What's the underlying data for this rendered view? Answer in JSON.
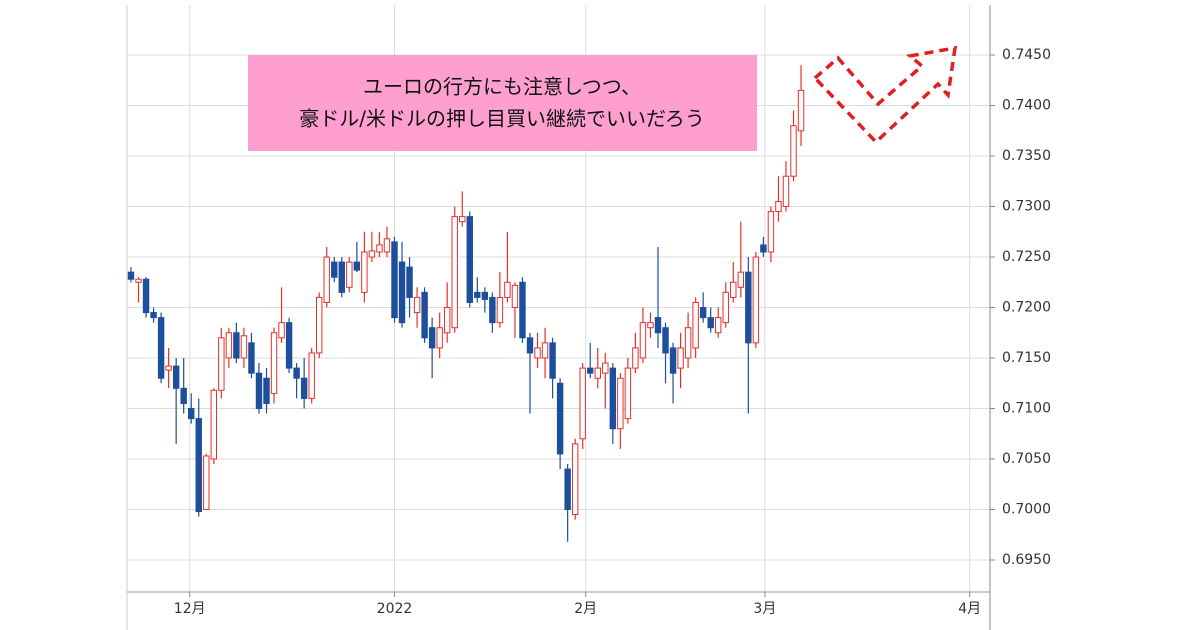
{
  "chart_data": {
    "type": "candlestick",
    "annotation": [
      "ユーロの行方にも注意しつつ、",
      "豪ドル/米ドルの押し目買い継続でいいだろう"
    ],
    "x": [
      0,
      1,
      2,
      3,
      4,
      5,
      6,
      7,
      8,
      9,
      10,
      11,
      12,
      13,
      14,
      15,
      16,
      17,
      18,
      19,
      20,
      21,
      22,
      23,
      24,
      25,
      26,
      27,
      28,
      29,
      30,
      31,
      32,
      33,
      34,
      35,
      36,
      37,
      38,
      39,
      40,
      41,
      42,
      43,
      44,
      45,
      46,
      47,
      48,
      49,
      50,
      51,
      52,
      53,
      54,
      55,
      56,
      57,
      58,
      59,
      60,
      61,
      62,
      63,
      64,
      65,
      66,
      67,
      68,
      69,
      70,
      71,
      72,
      73,
      74,
      75,
      76,
      77,
      78,
      79,
      80,
      81,
      82,
      83,
      84,
      85,
      86,
      87,
      88,
      89
    ],
    "open": [
      0.7235,
      0.7225,
      0.7228,
      0.7195,
      0.719,
      0.7138,
      0.7142,
      0.712,
      0.71,
      0.709,
      0.7,
      0.705,
      0.7118,
      0.715,
      0.7175,
      0.715,
      0.7165,
      0.7135,
      0.713,
      0.7115,
      0.717,
      0.7185,
      0.714,
      0.713,
      0.711,
      0.7155,
      0.7205,
      0.7245,
      0.7245,
      0.722,
      0.7245,
      0.7215,
      0.725,
      0.7255,
      0.7255,
      0.7265,
      0.7245,
      0.724,
      0.7195,
      0.7215,
      0.718,
      0.716,
      0.7175,
      0.718,
      0.7285,
      0.729,
      0.7215,
      0.7215,
      0.721,
      0.7185,
      0.721,
      0.72,
      0.7225,
      0.717,
      0.715,
      0.715,
      0.7165,
      0.7125,
      0.704,
      0.6995,
      0.707,
      0.714,
      0.713,
      0.7135,
      0.714,
      0.708,
      0.709,
      0.714,
      0.715,
      0.718,
      0.719,
      0.718,
      0.716,
      0.714,
      0.715,
      0.716,
      0.72,
      0.719,
      0.7175,
      0.7185,
      0.721,
      0.722,
      0.7235,
      0.7165,
      0.7262,
      0.7255,
      0.7295,
      0.73,
      0.733,
      0.7375
    ],
    "high": [
      0.724,
      0.723,
      0.723,
      0.72,
      0.7195,
      0.716,
      0.715,
      0.715,
      0.7115,
      0.711,
      0.7055,
      0.712,
      0.718,
      0.718,
      0.7185,
      0.718,
      0.7175,
      0.7145,
      0.714,
      0.718,
      0.722,
      0.719,
      0.7145,
      0.715,
      0.716,
      0.7215,
      0.726,
      0.725,
      0.725,
      0.725,
      0.7265,
      0.7275,
      0.7275,
      0.7275,
      0.728,
      0.727,
      0.7265,
      0.725,
      0.722,
      0.722,
      0.719,
      0.7195,
      0.7225,
      0.73,
      0.7315,
      0.7295,
      0.723,
      0.722,
      0.7215,
      0.7235,
      0.7275,
      0.7225,
      0.723,
      0.7175,
      0.7175,
      0.718,
      0.717,
      0.713,
      0.7045,
      0.707,
      0.7145,
      0.7165,
      0.716,
      0.7155,
      0.7145,
      0.7135,
      0.715,
      0.7175,
      0.72,
      0.7195,
      0.726,
      0.7185,
      0.7165,
      0.7175,
      0.7195,
      0.721,
      0.7215,
      0.72,
      0.72,
      0.7225,
      0.7245,
      0.7285,
      0.725,
      0.7255,
      0.727,
      0.73,
      0.733,
      0.7345,
      0.7395,
      0.744
    ],
    "low": [
      0.7225,
      0.7205,
      0.719,
      0.7185,
      0.7125,
      0.712,
      0.7065,
      0.7095,
      0.7085,
      0.6993,
      0.7,
      0.7045,
      0.711,
      0.714,
      0.7145,
      0.714,
      0.713,
      0.7095,
      0.7095,
      0.7105,
      0.7165,
      0.7135,
      0.711,
      0.71,
      0.7105,
      0.715,
      0.72,
      0.7225,
      0.721,
      0.7215,
      0.7235,
      0.7205,
      0.7245,
      0.725,
      0.725,
      0.7185,
      0.718,
      0.719,
      0.718,
      0.7165,
      0.713,
      0.715,
      0.7165,
      0.7175,
      0.728,
      0.72,
      0.7205,
      0.7195,
      0.7175,
      0.718,
      0.7205,
      0.717,
      0.7165,
      0.7095,
      0.714,
      0.713,
      0.711,
      0.704,
      0.6968,
      0.699,
      0.706,
      0.713,
      0.712,
      0.71,
      0.7065,
      0.706,
      0.7085,
      0.7135,
      0.7145,
      0.717,
      0.716,
      0.7125,
      0.7105,
      0.712,
      0.714,
      0.715,
      0.7185,
      0.7175,
      0.717,
      0.718,
      0.7205,
      0.721,
      0.7095,
      0.716,
      0.725,
      0.7245,
      0.7285,
      0.7295,
      0.7325,
      0.736
    ],
    "close": [
      0.7228,
      0.7228,
      0.7195,
      0.719,
      0.713,
      0.7142,
      0.712,
      0.7105,
      0.709,
      0.6998,
      0.7053,
      0.7118,
      0.717,
      0.7175,
      0.715,
      0.7172,
      0.7135,
      0.71,
      0.7105,
      0.7175,
      0.7185,
      0.714,
      0.713,
      0.711,
      0.7155,
      0.721,
      0.725,
      0.723,
      0.7215,
      0.7245,
      0.7237,
      0.7255,
      0.7256,
      0.7262,
      0.7268,
      0.719,
      0.7185,
      0.721,
      0.721,
      0.717,
      0.716,
      0.718,
      0.72,
      0.729,
      0.729,
      0.7205,
      0.721,
      0.7208,
      0.7185,
      0.721,
      0.7225,
      0.7222,
      0.717,
      0.7155,
      0.716,
      0.7165,
      0.713,
      0.7055,
      0.7,
      0.7065,
      0.714,
      0.7135,
      0.714,
      0.7145,
      0.708,
      0.713,
      0.714,
      0.716,
      0.7185,
      0.7185,
      0.7175,
      0.7155,
      0.7135,
      0.716,
      0.718,
      0.7205,
      0.719,
      0.718,
      0.719,
      0.7215,
      0.7225,
      0.7235,
      0.7165,
      0.725,
      0.7255,
      0.7295,
      0.7305,
      0.733,
      0.738,
      0.7415
    ],
    "up_color": "#e8302a",
    "down_color": "#1c4f9c",
    "xlim": [
      -0.53,
      114.1
    ],
    "xticks": [
      {
        "value": 7.8,
        "label": "12月"
      },
      {
        "value": 35.0,
        "label": "2022"
      },
      {
        "value": 60.4,
        "label": "2月"
      },
      {
        "value": 84.2,
        "label": "3月"
      },
      {
        "value": 111.4,
        "label": "4月"
      }
    ],
    "ylim": [
      0.69183,
      0.75045
    ],
    "yticks": [
      {
        "value": 0.695,
        "label": "0.6950"
      },
      {
        "value": 0.7,
        "label": "0.7000"
      },
      {
        "value": 0.705,
        "label": "0.7050"
      },
      {
        "value": 0.71,
        "label": "0.7100"
      },
      {
        "value": 0.715,
        "label": "0.7150"
      },
      {
        "value": 0.72,
        "label": "0.7200"
      },
      {
        "value": 0.725,
        "label": "0.7250"
      },
      {
        "value": 0.73,
        "label": "0.7300"
      },
      {
        "value": 0.735,
        "label": "0.7350"
      },
      {
        "value": 0.74,
        "label": "0.7400"
      },
      {
        "value": 0.745,
        "label": "0.7450"
      }
    ],
    "grid": true
  }
}
